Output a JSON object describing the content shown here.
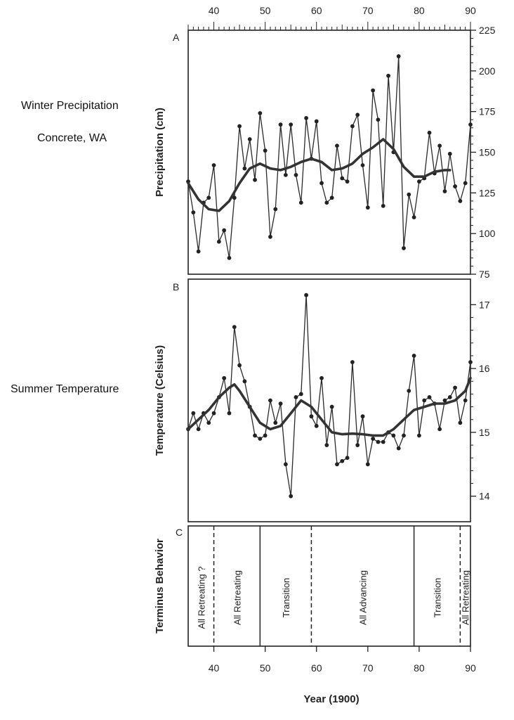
{
  "side_labels": {
    "line1": "Winter Precipitation",
    "line2": "Concrete, WA",
    "line3": "Summer Temperature"
  },
  "chart_data": [
    {
      "panel": "A",
      "type": "line",
      "ylabel": "Precipitation (cm)",
      "xlim": [
        35,
        90
      ],
      "ylim": [
        75,
        225
      ],
      "yticks": [
        75,
        100,
        125,
        150,
        175,
        200,
        225
      ],
      "xticks_top": [
        40,
        50,
        60,
        70,
        80,
        90
      ],
      "series": [
        {
          "name": "annual",
          "x": [
            35,
            36,
            37,
            38,
            39,
            40,
            41,
            42,
            43,
            44,
            45,
            46,
            47,
            48,
            49,
            50,
            51,
            52,
            53,
            54,
            55,
            56,
            57,
            58,
            59,
            60,
            61,
            62,
            63,
            64,
            65,
            66,
            67,
            68,
            69,
            70,
            71,
            72,
            73,
            74,
            75,
            76,
            77,
            78,
            79,
            80,
            81,
            82,
            83,
            84,
            85,
            86,
            87,
            88,
            89,
            90
          ],
          "values": [
            132,
            113,
            89,
            119,
            122,
            142,
            95,
            102,
            85,
            122,
            166,
            140,
            158,
            133,
            174,
            151,
            98,
            115,
            167,
            136,
            167,
            136,
            119,
            171,
            146,
            169,
            131,
            119,
            122,
            154,
            134,
            132,
            166,
            173,
            142,
            116,
            188,
            170,
            117,
            197,
            150,
            209,
            91,
            124,
            110,
            132,
            134,
            162,
            137,
            154,
            126,
            149,
            129,
            120,
            131,
            167
          ]
        },
        {
          "name": "smoothed",
          "x": [
            35,
            37,
            39,
            41,
            43,
            45,
            47,
            49,
            51,
            53,
            55,
            57,
            59,
            61,
            63,
            65,
            67,
            69,
            71,
            73,
            75,
            77,
            79,
            81,
            83,
            85,
            86
          ],
          "values": [
            131,
            121,
            115,
            114,
            120,
            131,
            140,
            143,
            140,
            139,
            141,
            144,
            146,
            144,
            139,
            140,
            143,
            149,
            153,
            158,
            152,
            141,
            135,
            135,
            138,
            139,
            139
          ]
        }
      ]
    },
    {
      "panel": "B",
      "type": "line",
      "ylabel": "Temperature (Celsius)",
      "xlim": [
        35,
        90
      ],
      "ylim": [
        13.6,
        17.4
      ],
      "yticks": [
        14,
        15,
        16,
        17
      ],
      "series": [
        {
          "name": "annual",
          "x": [
            35,
            36,
            37,
            38,
            39,
            40,
            41,
            42,
            43,
            44,
            45,
            46,
            47,
            48,
            49,
            50,
            51,
            52,
            53,
            54,
            55,
            56,
            57,
            58,
            59,
            60,
            61,
            62,
            63,
            64,
            65,
            66,
            67,
            68,
            69,
            70,
            71,
            72,
            73,
            74,
            75,
            76,
            77,
            78,
            79,
            80,
            81,
            82,
            83,
            84,
            85,
            86,
            87,
            88,
            89,
            90
          ],
          "values": [
            15.05,
            15.3,
            15.05,
            15.3,
            15.15,
            15.3,
            15.55,
            15.85,
            15.3,
            16.65,
            16.05,
            15.8,
            15.4,
            14.95,
            14.9,
            14.95,
            15.5,
            15.15,
            15.45,
            14.5,
            14.0,
            15.55,
            15.6,
            17.15,
            15.25,
            15.1,
            15.85,
            14.8,
            15.4,
            14.5,
            14.55,
            14.6,
            16.1,
            14.8,
            15.25,
            14.5,
            14.9,
            14.85,
            14.85,
            15.0,
            14.95,
            14.75,
            14.95,
            15.65,
            16.2,
            14.95,
            15.5,
            15.55,
            15.45,
            15.05,
            15.5,
            15.55,
            15.7,
            15.15,
            15.5,
            16.1
          ]
        },
        {
          "name": "smoothed",
          "x": [
            35,
            37,
            39,
            41,
            43,
            44,
            45,
            47,
            49,
            51,
            53,
            55,
            57,
            59,
            61,
            63,
            65,
            67,
            69,
            71,
            73,
            75,
            77,
            79,
            81,
            83,
            85,
            87,
            89,
            90
          ],
          "values": [
            15.05,
            15.2,
            15.35,
            15.55,
            15.7,
            15.75,
            15.65,
            15.4,
            15.15,
            15.05,
            15.1,
            15.3,
            15.5,
            15.4,
            15.2,
            15.0,
            14.97,
            14.98,
            14.97,
            14.95,
            14.95,
            15.05,
            15.2,
            15.35,
            15.4,
            15.45,
            15.45,
            15.5,
            15.65,
            15.85
          ]
        }
      ]
    },
    {
      "panel": "C",
      "type": "timeline",
      "ylabel": "Terminus Behavior",
      "xlabel": "Year (1900)",
      "xlim": [
        35,
        90
      ],
      "xticks": [
        40,
        50,
        60,
        70,
        80,
        90
      ],
      "dividers": [
        {
          "year": 40,
          "style": "dashed"
        },
        {
          "year": 49,
          "style": "solid"
        },
        {
          "year": 59,
          "style": "dashed"
        },
        {
          "year": 79,
          "style": "solid"
        },
        {
          "year": 88,
          "style": "dashed"
        }
      ],
      "phases": [
        {
          "label": "All Retreating ?",
          "center": 37.5
        },
        {
          "label": "All Retreating",
          "center": 44.5
        },
        {
          "label": "Transition",
          "center": 54
        },
        {
          "label": "All Advancing",
          "center": 69
        },
        {
          "label": "Transition",
          "center": 83.5
        },
        {
          "label": "All Retreating",
          "center": 89
        }
      ]
    }
  ]
}
